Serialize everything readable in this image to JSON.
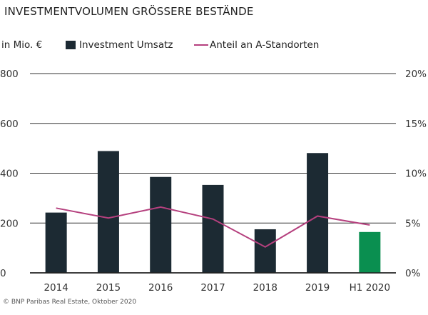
{
  "title": "INVESTMENTVOLUMEN GRÖSSERE BESTÄNDE",
  "unit_label": "in Mio. €",
  "source": "© BNP Paribas Real Estate, Oktober 2020",
  "colors": {
    "bar": "#1c2a33",
    "bar_highlight": "#0a8f50",
    "line": "#b5407e",
    "grid": "#333333"
  },
  "chart_data": {
    "type": "bar+line",
    "title": "INVESTMENTVOLUMEN GRÖSSERE BESTÄNDE",
    "categories": [
      "2014",
      "2015",
      "2016",
      "2017",
      "2018",
      "2019",
      "H1 2020"
    ],
    "series": [
      {
        "name": "Investment Umsatz",
        "type": "bar",
        "axis": "left",
        "values": [
          242,
          489,
          385,
          353,
          175,
          481,
          164
        ]
      },
      {
        "name": "Anteil an A-Standorten",
        "type": "line",
        "axis": "right",
        "values": [
          6.5,
          5.5,
          6.6,
          5.4,
          2.6,
          5.7,
          4.8
        ]
      }
    ],
    "highlight_category": "H1 2020",
    "ylabel": "in Mio. €",
    "ylim": [
      0,
      800
    ],
    "yticks": [
      "0",
      "200",
      "400",
      "600",
      "800"
    ],
    "y2lim": [
      0,
      20
    ],
    "y2ticks": [
      "0%",
      "5%",
      "10%",
      "15%",
      "20%"
    ],
    "grid": true,
    "legend": "top"
  }
}
